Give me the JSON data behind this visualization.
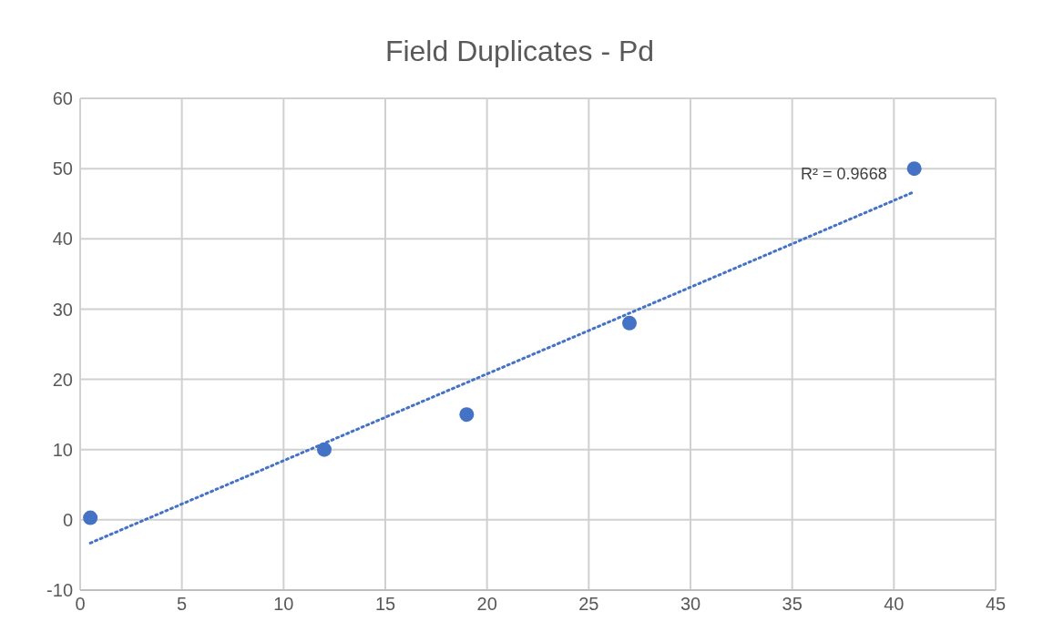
{
  "chart_data": {
    "type": "scatter",
    "title": "Field Duplicates - Pd",
    "x": [
      0.5,
      12,
      19,
      27,
      41
    ],
    "series": [
      {
        "color": "#4472c4",
        "values": [
          0.3,
          10,
          15,
          28,
          50
        ],
        "marker": "circle"
      },
      {
        "type": "line",
        "color": "#4472c4",
        "x": [
          0.5,
          41
        ],
        "values": [
          -3.3,
          46.7
        ],
        "marker": "none",
        "line_style": "dotted"
      }
    ],
    "xlim": [
      0,
      45
    ],
    "xticks": [
      0,
      5,
      10,
      15,
      20,
      25,
      30,
      35,
      40,
      45
    ],
    "ylim": [
      -10,
      60
    ],
    "yticks": [
      -10,
      0,
      10,
      20,
      30,
      40,
      50,
      60
    ],
    "grid": true,
    "annotations": [
      "R² = 0.9668"
    ]
  }
}
